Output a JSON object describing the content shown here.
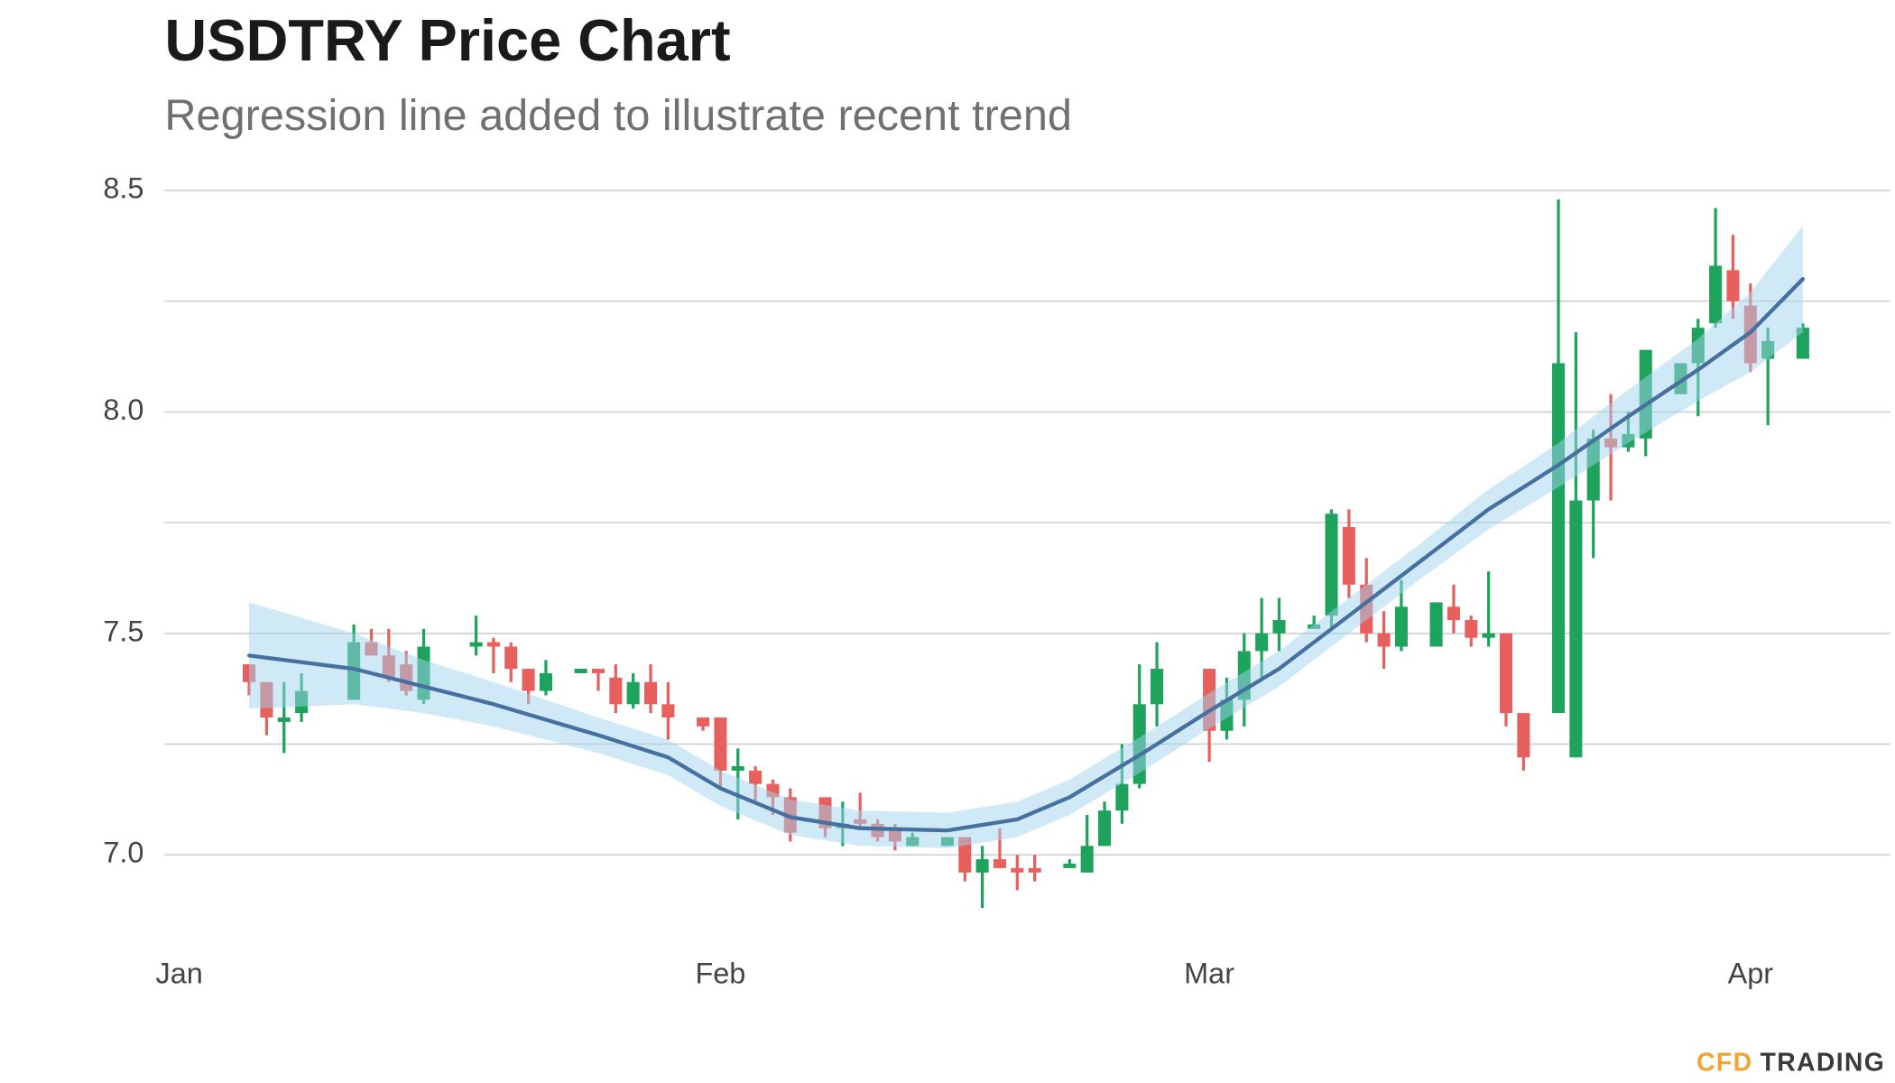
{
  "chart_data": {
    "type": "candlestick",
    "title": "USDTRY Price Chart",
    "subtitle": "Regression line added to illustrate recent trend",
    "x": [
      4,
      5,
      6,
      7,
      10,
      11,
      12,
      13,
      14,
      17,
      18,
      19,
      20,
      21,
      23,
      24,
      25,
      26,
      27,
      28,
      30,
      31,
      32,
      33,
      34,
      35,
      37,
      38,
      39,
      40,
      41,
      42,
      44,
      45,
      46,
      47,
      48,
      49,
      51,
      52,
      53,
      54,
      55,
      56,
      59,
      60,
      61,
      62,
      63,
      65,
      66,
      67,
      68,
      69,
      70,
      72,
      73,
      74,
      75,
      76,
      77,
      79,
      80,
      81,
      82,
      83,
      84,
      86,
      87,
      88,
      89,
      90,
      91,
      93
    ],
    "open": [
      7.43,
      7.39,
      7.3,
      7.32,
      7.35,
      7.48,
      7.45,
      7.43,
      7.35,
      7.47,
      7.48,
      7.47,
      7.42,
      7.37,
      7.41,
      7.42,
      7.4,
      7.34,
      7.39,
      7.34,
      7.31,
      7.31,
      7.19,
      7.19,
      7.16,
      7.13,
      7.13,
      7.06,
      7.08,
      7.07,
      7.06,
      7.02,
      7.02,
      7.04,
      6.96,
      6.99,
      6.97,
      6.97,
      6.97,
      6.96,
      7.02,
      7.1,
      7.16,
      7.34,
      7.42,
      7.28,
      7.35,
      7.46,
      7.5,
      7.51,
      7.54,
      7.74,
      7.61,
      7.5,
      7.47,
      7.47,
      7.56,
      7.53,
      7.49,
      7.5,
      7.32,
      7.32,
      7.22,
      7.8,
      7.94,
      7.92,
      7.94,
      8.04,
      8.11,
      8.2,
      8.32,
      8.24,
      8.12,
      8.12
    ],
    "high": [
      7.43,
      7.39,
      7.39,
      7.41,
      7.52,
      7.51,
      7.51,
      7.46,
      7.51,
      7.54,
      7.49,
      7.48,
      7.42,
      7.44,
      7.42,
      7.42,
      7.43,
      7.41,
      7.43,
      7.39,
      7.31,
      7.31,
      7.24,
      7.2,
      7.17,
      7.15,
      7.13,
      7.12,
      7.14,
      7.08,
      7.07,
      7.05,
      7.04,
      7.04,
      7.02,
      7.06,
      7.0,
      7.0,
      6.99,
      7.09,
      7.12,
      7.25,
      7.43,
      7.48,
      7.42,
      7.4,
      7.5,
      7.58,
      7.58,
      7.54,
      7.78,
      7.78,
      7.67,
      7.55,
      7.62,
      7.57,
      7.61,
      7.54,
      7.64,
      7.5,
      7.32,
      8.48,
      8.18,
      7.96,
      8.04,
      8.0,
      8.14,
      8.11,
      8.21,
      8.46,
      8.4,
      8.29,
      8.19,
      8.2
    ],
    "low": [
      7.36,
      7.27,
      7.23,
      7.3,
      7.35,
      7.45,
      7.39,
      7.36,
      7.34,
      7.45,
      7.41,
      7.39,
      7.34,
      7.36,
      7.41,
      7.37,
      7.32,
      7.33,
      7.32,
      7.26,
      7.28,
      7.15,
      7.08,
      7.12,
      7.09,
      7.03,
      7.04,
      7.02,
      7.06,
      7.03,
      7.01,
      7.02,
      7.02,
      6.94,
      6.88,
      6.97,
      6.92,
      6.94,
      6.97,
      6.96,
      7.02,
      7.07,
      7.15,
      7.29,
      7.21,
      7.26,
      7.29,
      7.4,
      7.46,
      7.51,
      7.51,
      7.58,
      7.48,
      7.42,
      7.46,
      7.47,
      7.5,
      7.47,
      7.47,
      7.29,
      7.19,
      7.32,
      7.22,
      7.67,
      7.8,
      7.91,
      7.9,
      8.04,
      7.99,
      8.19,
      8.21,
      8.09,
      7.97,
      8.12
    ],
    "close": [
      7.39,
      7.31,
      7.31,
      7.37,
      7.48,
      7.45,
      7.4,
      7.37,
      7.47,
      7.48,
      7.47,
      7.42,
      7.37,
      7.41,
      7.42,
      7.41,
      7.34,
      7.39,
      7.34,
      7.31,
      7.29,
      7.19,
      7.2,
      7.16,
      7.13,
      7.05,
      7.06,
      7.07,
      7.07,
      7.04,
      7.03,
      7.04,
      7.04,
      6.96,
      6.99,
      6.97,
      6.96,
      6.96,
      6.98,
      7.02,
      7.1,
      7.16,
      7.34,
      7.42,
      7.28,
      7.35,
      7.46,
      7.5,
      7.53,
      7.52,
      7.77,
      7.61,
      7.5,
      7.47,
      7.56,
      7.57,
      7.53,
      7.49,
      7.5,
      7.32,
      7.22,
      8.11,
      7.8,
      7.94,
      7.92,
      7.95,
      8.14,
      8.11,
      8.19,
      8.33,
      8.25,
      8.11,
      8.16,
      8.19
    ],
    "up_color": "#1ea35c",
    "down_color": "#e8605e",
    "regression": {
      "color": "#46709f",
      "band_color": "#9fd3ef",
      "x": [
        4,
        10,
        14,
        18,
        24,
        28,
        31,
        35,
        39,
        44,
        48,
        51,
        55,
        59,
        63,
        67,
        71,
        75,
        79,
        83,
        87,
        90,
        93
      ],
      "values": [
        7.45,
        7.42,
        7.38,
        7.34,
        7.27,
        7.22,
        7.15,
        7.085,
        7.06,
        7.055,
        7.08,
        7.13,
        7.225,
        7.325,
        7.42,
        7.54,
        7.66,
        7.78,
        7.88,
        7.99,
        8.095,
        8.18,
        8.3
      ],
      "upper": [
        7.57,
        7.5,
        7.44,
        7.39,
        7.31,
        7.26,
        7.19,
        7.125,
        7.1,
        7.095,
        7.12,
        7.17,
        7.265,
        7.365,
        7.46,
        7.58,
        7.7,
        7.825,
        7.93,
        8.05,
        8.165,
        8.27,
        8.42
      ],
      "lower": [
        7.33,
        7.34,
        7.32,
        7.29,
        7.23,
        7.18,
        7.11,
        7.045,
        7.02,
        7.015,
        7.04,
        7.09,
        7.185,
        7.285,
        7.38,
        7.5,
        7.62,
        7.735,
        7.83,
        7.93,
        8.025,
        8.09,
        8.18
      ]
    },
    "xlim": [
      -0.84,
      98
    ],
    "xticks": [
      {
        "value": 0,
        "label": "Jan"
      },
      {
        "value": 31,
        "label": "Feb"
      },
      {
        "value": 59,
        "label": "Mar"
      },
      {
        "value": 90,
        "label": "Apr"
      }
    ],
    "ylim": [
      6.84,
      8.55
    ],
    "yticks": [
      {
        "value": 7,
        "label": "7.0"
      },
      7.5,
      {
        "value": 8,
        "label": "8.0"
      },
      8.5
    ],
    "minor_yticks": [
      7.25,
      7.75,
      8.25
    ],
    "grid": true
  },
  "brand": {
    "accent": "CFD",
    "text": "TRADING",
    "accent_color": "#f2a431",
    "text_color": "#3a3a3a"
  }
}
